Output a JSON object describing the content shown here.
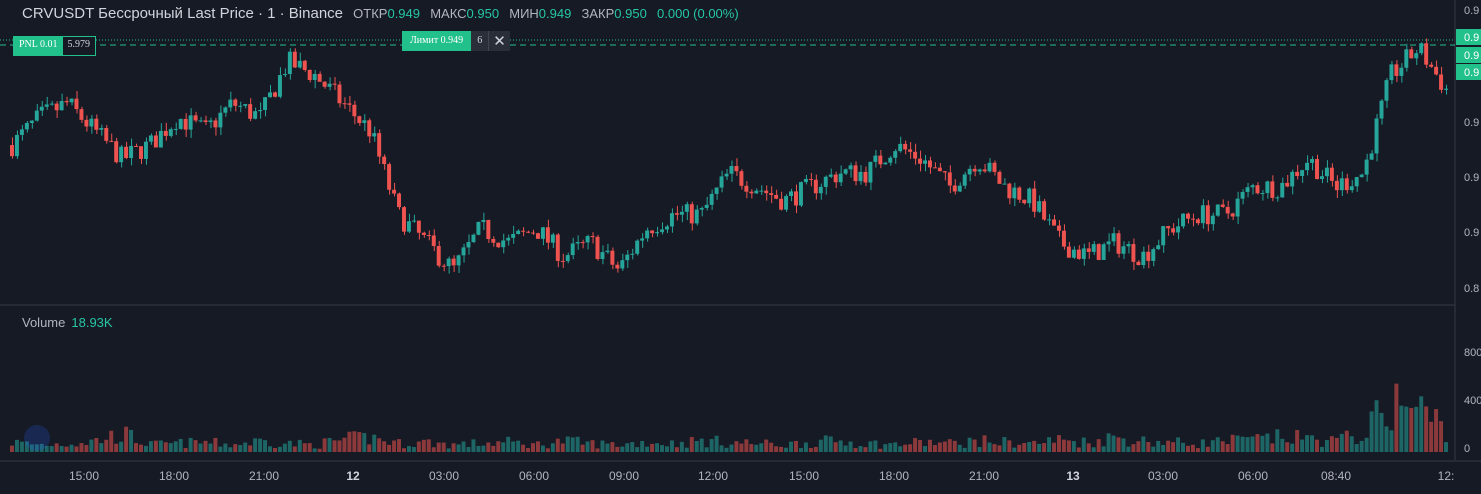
{
  "header": {
    "symbol": "CRVUSDT Бессрочный Last Price · 1 · Binance",
    "open_label": "ОТКР",
    "open": "0.949",
    "high_label": "МАКС",
    "high": "0.950",
    "low_label": "МИН",
    "low": "0.949",
    "close_label": "ЗАКР",
    "close": "0.950",
    "change": "0.000 (0.00%)"
  },
  "positions": {
    "pnl_label": "PNL 0.01",
    "pnl_qty": "5.979",
    "limit_label": "Лимит 0.949",
    "limit_qty": "6",
    "close_symbol": "✕"
  },
  "volume_legend": {
    "label": "Volume",
    "value": "18.93K"
  },
  "colors": {
    "up": "#26a69a",
    "down": "#ef5350",
    "accent": "#22c08a",
    "background": "#161a25"
  },
  "chart_data": {
    "type": "candlestick",
    "x_ticks": [
      "15:00",
      "18:00",
      "21:00",
      "12",
      "03:00",
      "06:00",
      "09:00",
      "12:00",
      "15:00",
      "18:00",
      "21:00",
      "13",
      "03:00",
      "06:00",
      "08:40",
      "12:"
    ],
    "price_axis_labels": [
      "0.9",
      "0.9",
      "0.9",
      "0.9",
      "0.8",
      "0.8"
    ],
    "price_tags": [
      "0.9",
      "0.9",
      "0.9"
    ],
    "volume_axis_labels": [
      "800",
      "400",
      "0"
    ],
    "series": [
      {
        "name": "Price",
        "values": [
          0.905,
          0.915,
          0.92,
          0.91,
          0.9,
          0.905,
          0.915,
          0.91,
          0.92,
          0.915,
          0.935,
          0.93,
          0.92,
          0.91,
          0.88,
          0.87,
          0.86,
          0.875,
          0.87,
          0.875,
          0.865,
          0.87,
          0.86,
          0.875,
          0.88,
          0.88,
          0.895,
          0.89,
          0.885,
          0.89,
          0.895,
          0.895,
          0.905,
          0.9,
          0.89,
          0.9,
          0.89,
          0.885,
          0.87,
          0.865,
          0.87,
          0.865,
          0.875,
          0.88,
          0.88,
          0.89,
          0.89,
          0.9,
          0.89,
          0.895,
          0.93,
          0.94,
          0.925
        ]
      },
      {
        "name": "Volume",
        "values": [
          80,
          60,
          70,
          90,
          150,
          60,
          70,
          80,
          60,
          90,
          70,
          60,
          100,
          120,
          70,
          80,
          60,
          70,
          80,
          60,
          90,
          70,
          60,
          80,
          70,
          90,
          80,
          70,
          60,
          80,
          90,
          70,
          60,
          80,
          70,
          90,
          80,
          70,
          100,
          80,
          120,
          90,
          80,
          70,
          90,
          100,
          120,
          110,
          90,
          150,
          400,
          350,
          200
        ]
      }
    ]
  }
}
